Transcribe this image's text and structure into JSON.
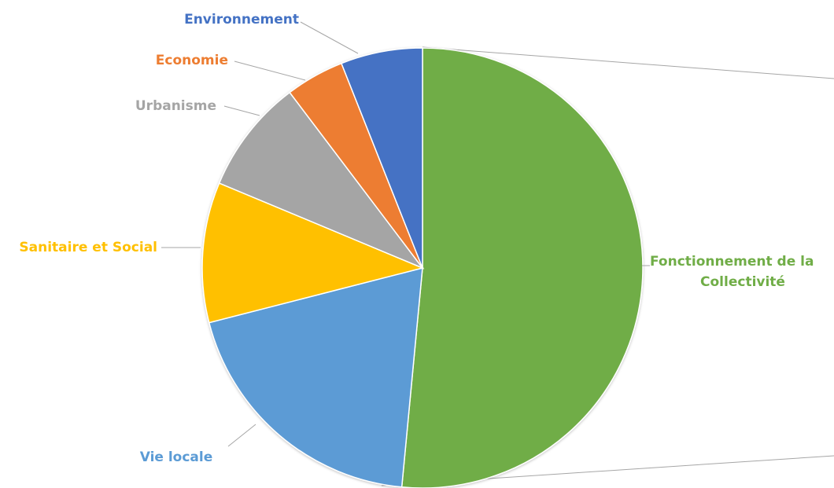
{
  "chart_data": {
    "type": "pie",
    "title": "",
    "legend": "none",
    "slices": [
      {
        "label": "Fonctionnement de la Collectivité",
        "label_lines": [
          "Fonctionnement de la",
          "Collectivité"
        ],
        "value": 51.5,
        "color": "#70ad47"
      },
      {
        "label": "Vie locale",
        "label_lines": [
          "Vie locale"
        ],
        "value": 19.5,
        "color": "#5b9bd5"
      },
      {
        "label": "Sanitaire et Social",
        "label_lines": [
          "Sanitaire et Social"
        ],
        "value": 10.3,
        "color": "#ffc000"
      },
      {
        "label": "Urbanisme",
        "label_lines": [
          "Urbanisme"
        ],
        "value": 8.4,
        "color": "#a5a5a5"
      },
      {
        "label": "Economie",
        "label_lines": [
          "Economie"
        ],
        "value": 4.3,
        "color": "#ed7d31"
      },
      {
        "label": "Environnement",
        "label_lines": [
          "Environnement"
        ],
        "value": 6.0,
        "color": "#4472c4"
      }
    ]
  }
}
